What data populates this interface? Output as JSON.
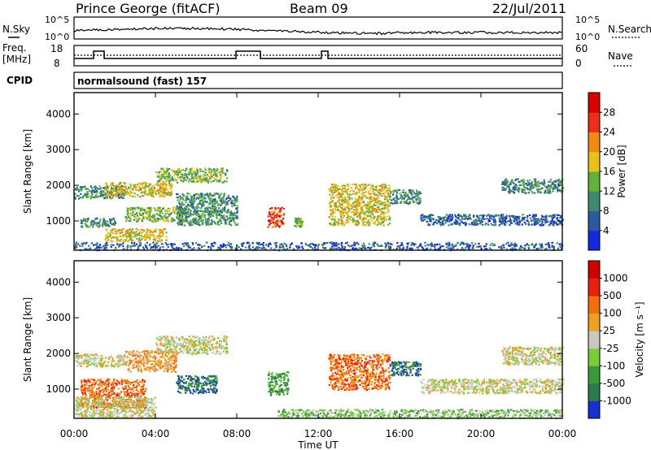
{
  "header": {
    "station": "Prince George (fitACF)",
    "beam": "Beam 09",
    "date": "22/Jul/2011"
  },
  "noise_panel": {
    "left_label": "N.Sky",
    "right_label": "N.Search",
    "left_ticks": [
      "10^5",
      "10^0"
    ],
    "right_ticks": [
      "10^5",
      "10^0"
    ]
  },
  "freq_panel": {
    "left_label_1": "Freq.",
    "left_label_2": "[MHz]",
    "right_label": "Nave",
    "left_ticks": [
      "18",
      "8"
    ],
    "right_ticks": [
      "60",
      "0"
    ]
  },
  "cpid": {
    "label": "CPID",
    "value": "normalsound (fast) 157"
  },
  "x_axis": {
    "label": "Time UT",
    "ticks": [
      "00:00",
      "04:00",
      "08:00",
      "12:00",
      "16:00",
      "20:00",
      "00:00"
    ]
  },
  "chart_data": [
    {
      "type": "heatmap",
      "name": "power",
      "xlabel": "Time UT",
      "ylabel": "Slant Range [km]",
      "xlim": [
        0,
        24
      ],
      "ylim": [
        180,
        4600
      ],
      "y_ticks": [
        "1000",
        "2000",
        "3000",
        "4000"
      ],
      "colorbar_label": "Power [dB]",
      "colorbar_ticks": [
        "4",
        "8",
        "12",
        "16",
        "20",
        "24",
        "28"
      ],
      "colorbar_colors": [
        "#1428e0",
        "#2c5a9c",
        "#3d8a6c",
        "#62b23a",
        "#e8c21a",
        "#f08a14",
        "#e8301a",
        "#d80000"
      ],
      "scatter_regions": [
        {
          "t0": 0.0,
          "t1": 2.5,
          "r0": 1650,
          "r1": 2000,
          "level": 2
        },
        {
          "t0": 0.3,
          "t1": 2.0,
          "r0": 850,
          "r1": 1100,
          "level": 2
        },
        {
          "t0": 1.5,
          "t1": 4.8,
          "r0": 1700,
          "r1": 2100,
          "level": 4
        },
        {
          "t0": 4.0,
          "t1": 7.5,
          "r0": 2100,
          "r1": 2500,
          "level": 3
        },
        {
          "t0": 2.5,
          "t1": 5.5,
          "r0": 1000,
          "r1": 1400,
          "level": 3
        },
        {
          "t0": 1.5,
          "t1": 4.5,
          "r0": 450,
          "r1": 800,
          "level": 4
        },
        {
          "t0": 5.0,
          "t1": 8.0,
          "r0": 900,
          "r1": 1800,
          "level": 2
        },
        {
          "t0": 9.5,
          "t1": 10.3,
          "r0": 850,
          "r1": 1400,
          "level": 6
        },
        {
          "t0": 10.8,
          "t1": 11.2,
          "r0": 850,
          "r1": 1100,
          "level": 3
        },
        {
          "t0": 12.5,
          "t1": 15.5,
          "r0": 900,
          "r1": 2050,
          "level": 4
        },
        {
          "t0": 15.5,
          "t1": 17.0,
          "r0": 1500,
          "r1": 1900,
          "level": 2
        },
        {
          "t0": 17.0,
          "t1": 24.0,
          "r0": 900,
          "r1": 1200,
          "level": 1
        },
        {
          "t0": 21.0,
          "t1": 24.0,
          "r0": 1800,
          "r1": 2200,
          "level": 2
        },
        {
          "t0": 0.0,
          "t1": 24.0,
          "r0": 200,
          "r1": 420,
          "level": 1
        }
      ]
    },
    {
      "type": "heatmap",
      "name": "velocity",
      "xlabel": "Time UT",
      "ylabel": "Slant Range [km]",
      "xlim": [
        0,
        24
      ],
      "ylim": [
        180,
        4600
      ],
      "y_ticks": [
        "1000",
        "2000",
        "3000",
        "4000"
      ],
      "colorbar_label": "Velocity [m s⁻¹]",
      "colorbar_ticks": [
        "1000",
        "500",
        "100",
        "25",
        "-25",
        "-100",
        "-500",
        "-1000"
      ],
      "colorbar_colors": [
        "#1a2fd0",
        "#2a7a4a",
        "#3a9a3a",
        "#7acc3a",
        "#c8c8c0",
        "#f0a020",
        "#f07010",
        "#e82010",
        "#d00000"
      ],
      "scatter_regions": [
        {
          "t0": 0.0,
          "t1": 2.5,
          "r0": 1650,
          "r1": 2000,
          "level": 4
        },
        {
          "t0": 0.3,
          "t1": 3.5,
          "r0": 500,
          "r1": 1300,
          "level": 6
        },
        {
          "t0": 2.5,
          "t1": 5.0,
          "r0": 1500,
          "r1": 2100,
          "level": 5
        },
        {
          "t0": 4.0,
          "t1": 7.5,
          "r0": 2000,
          "r1": 2500,
          "level": 4
        },
        {
          "t0": 5.0,
          "t1": 7.0,
          "r0": 900,
          "r1": 1400,
          "level": 1
        },
        {
          "t0": 9.5,
          "t1": 10.5,
          "r0": 850,
          "r1": 1500,
          "level": 2
        },
        {
          "t0": 12.5,
          "t1": 15.5,
          "r0": 1000,
          "r1": 2000,
          "level": 6
        },
        {
          "t0": 15.5,
          "t1": 17.0,
          "r0": 1400,
          "r1": 1800,
          "level": 1
        },
        {
          "t0": 17.0,
          "t1": 24.0,
          "r0": 900,
          "r1": 1300,
          "level": 4
        },
        {
          "t0": 21.0,
          "t1": 24.0,
          "r0": 1700,
          "r1": 2200,
          "level": 4
        },
        {
          "t0": 10.0,
          "t1": 24.0,
          "r0": 200,
          "r1": 450,
          "level": 3
        },
        {
          "t0": 0.0,
          "t1": 4.0,
          "r0": 200,
          "r1": 800,
          "level": 4
        }
      ]
    }
  ]
}
